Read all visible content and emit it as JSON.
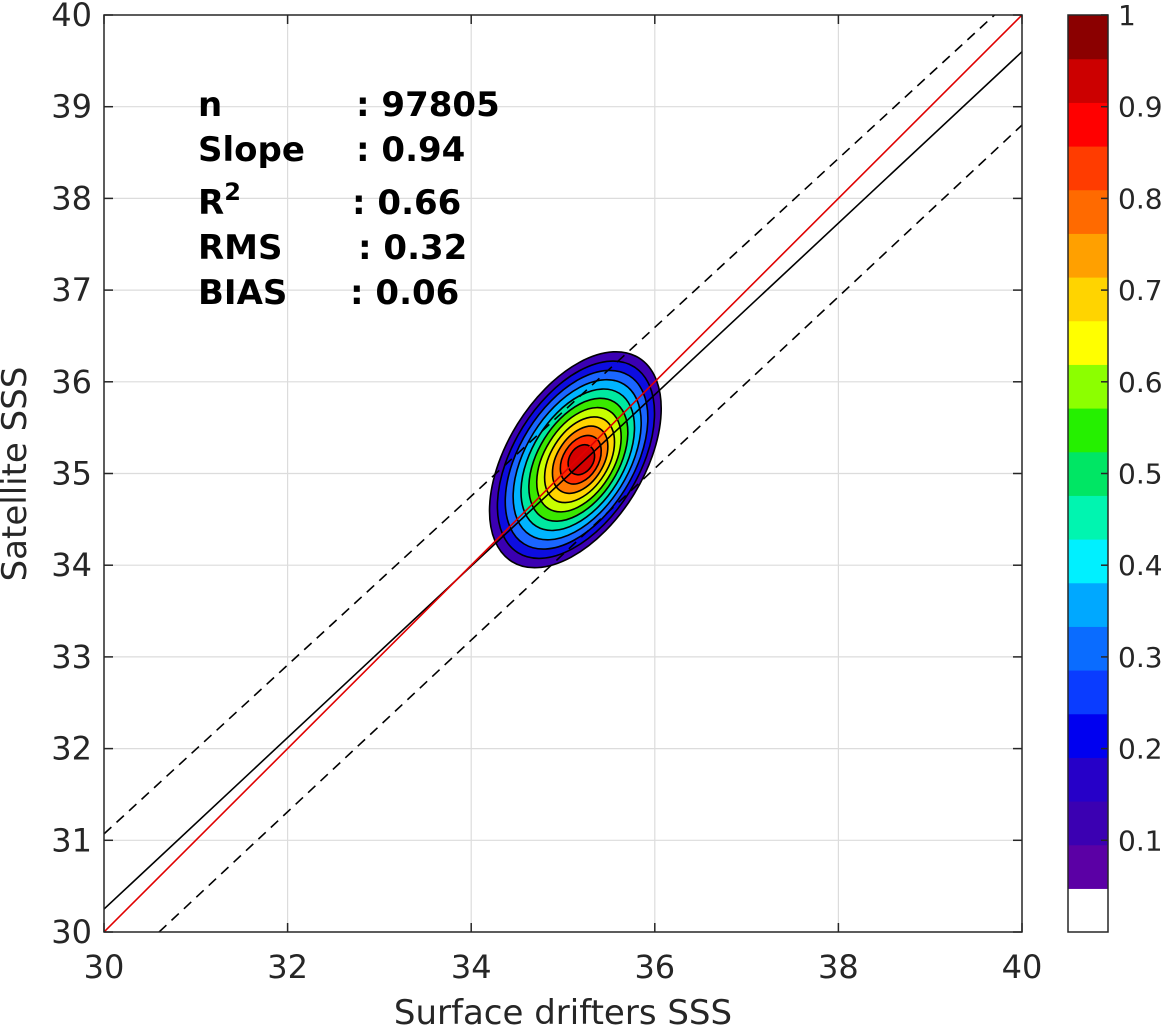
{
  "chart_data": {
    "type": "contour",
    "xlabel": "Surface drifters SSS",
    "ylabel": "Satellite SSS",
    "xlim": [
      30,
      40
    ],
    "ylim": [
      30,
      40
    ],
    "x_ticks": [
      "30",
      "32",
      "34",
      "36",
      "38",
      "40"
    ],
    "y_ticks": [
      "30",
      "31",
      "32",
      "33",
      "34",
      "35",
      "36",
      "37",
      "38",
      "39",
      "40"
    ],
    "grid": true,
    "stats": [
      {
        "label": "n",
        "value": ": 97805"
      },
      {
        "label": "Slope",
        "value": ": 0.94"
      },
      {
        "label": "R",
        "sup": "2",
        "value": ": 0.66"
      },
      {
        "label": "RMS",
        "value": ": 0.32"
      },
      {
        "label": "BIAS",
        "value": ": 0.06"
      }
    ],
    "lines": {
      "one_to_one": {
        "color": "#e00000",
        "x": [
          30,
          40
        ],
        "y": [
          30,
          40
        ]
      },
      "fit": {
        "color": "#000000",
        "x": [
          30,
          40
        ],
        "y": [
          30.25,
          39.6
        ]
      },
      "upper_bound": {
        "color": "#000000",
        "dash": true,
        "x": [
          30,
          39.7
        ],
        "y": [
          31.07,
          40
        ]
      },
      "lower_bound": {
        "color": "#000000",
        "dash": true,
        "x": [
          30.6,
          40
        ],
        "y": [
          30,
          38.8
        ]
      }
    },
    "density_center": {
      "x": 35.2,
      "y": 35.15
    },
    "contour_levels": [
      {
        "level": 0.05,
        "color": "#3b00b2"
      },
      {
        "level": 0.15,
        "color": "#0d0de0"
      },
      {
        "level": 0.25,
        "color": "#1a66ff"
      },
      {
        "level": 0.35,
        "color": "#00b4ff"
      },
      {
        "level": 0.45,
        "color": "#00e8a0"
      },
      {
        "level": 0.55,
        "color": "#39e800"
      },
      {
        "level": 0.65,
        "color": "#c8ff00"
      },
      {
        "level": 0.72,
        "color": "#ffd400"
      },
      {
        "level": 0.8,
        "color": "#ff7a00"
      },
      {
        "level": 0.87,
        "color": "#ff2a00"
      },
      {
        "level": 0.93,
        "color": "#d40000"
      }
    ],
    "colorbar": {
      "range": [
        0,
        1
      ],
      "ticks": [
        "0.1",
        "0.2",
        "0.3",
        "0.4",
        "0.5",
        "0.6",
        "0.7",
        "0.8",
        "0.9",
        "1"
      ],
      "colors": [
        "#ffffff",
        "#5b00a5",
        "#3b00b2",
        "#2600c8",
        "#0000f0",
        "#0a3cff",
        "#0a6cff",
        "#00a8ff",
        "#00f0ff",
        "#00f5b0",
        "#00e664",
        "#25f000",
        "#8cff00",
        "#ffff00",
        "#ffd400",
        "#ffa000",
        "#ff6a00",
        "#ff3c00",
        "#ff0000",
        "#cc0000",
        "#8b0000"
      ]
    }
  }
}
